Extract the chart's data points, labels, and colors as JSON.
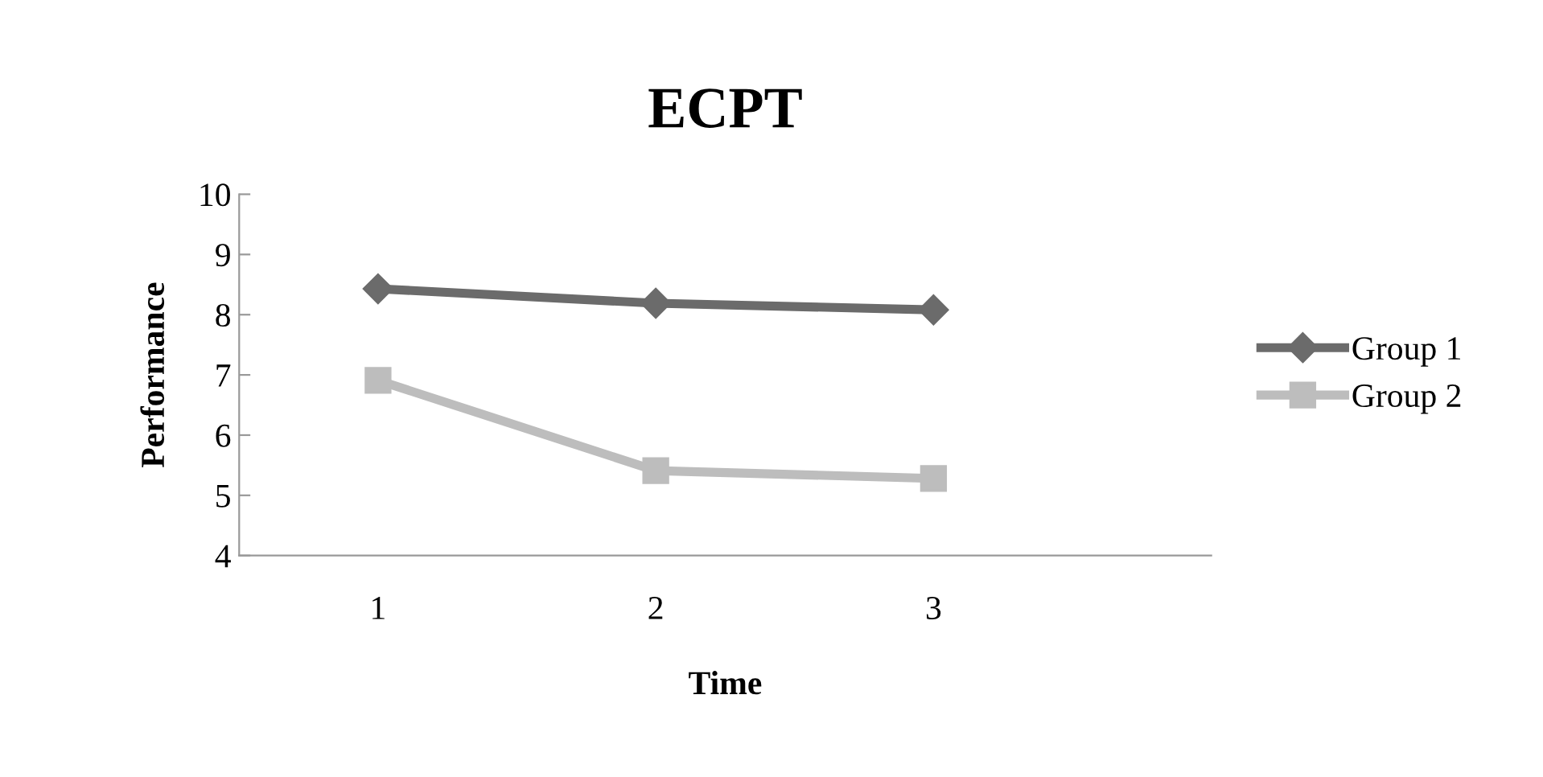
{
  "chart_data": {
    "type": "line",
    "title": "ECPT",
    "xlabel": "Time",
    "ylabel": "Performance",
    "categories": [
      "1",
      "2",
      "3"
    ],
    "series": [
      {
        "name": "Group 1",
        "color": "#6b6b6b",
        "marker": "diamond",
        "values": [
          8.43,
          8.19,
          8.08
        ]
      },
      {
        "name": "Group 2",
        "color": "#bdbdbd",
        "marker": "square",
        "values": [
          6.91,
          5.41,
          5.28
        ]
      }
    ],
    "ylim": [
      4,
      10
    ],
    "yticks": [
      4,
      5,
      6,
      7,
      8,
      9,
      10
    ],
    "grid": false,
    "legend": "right",
    "line_style": "solid"
  }
}
